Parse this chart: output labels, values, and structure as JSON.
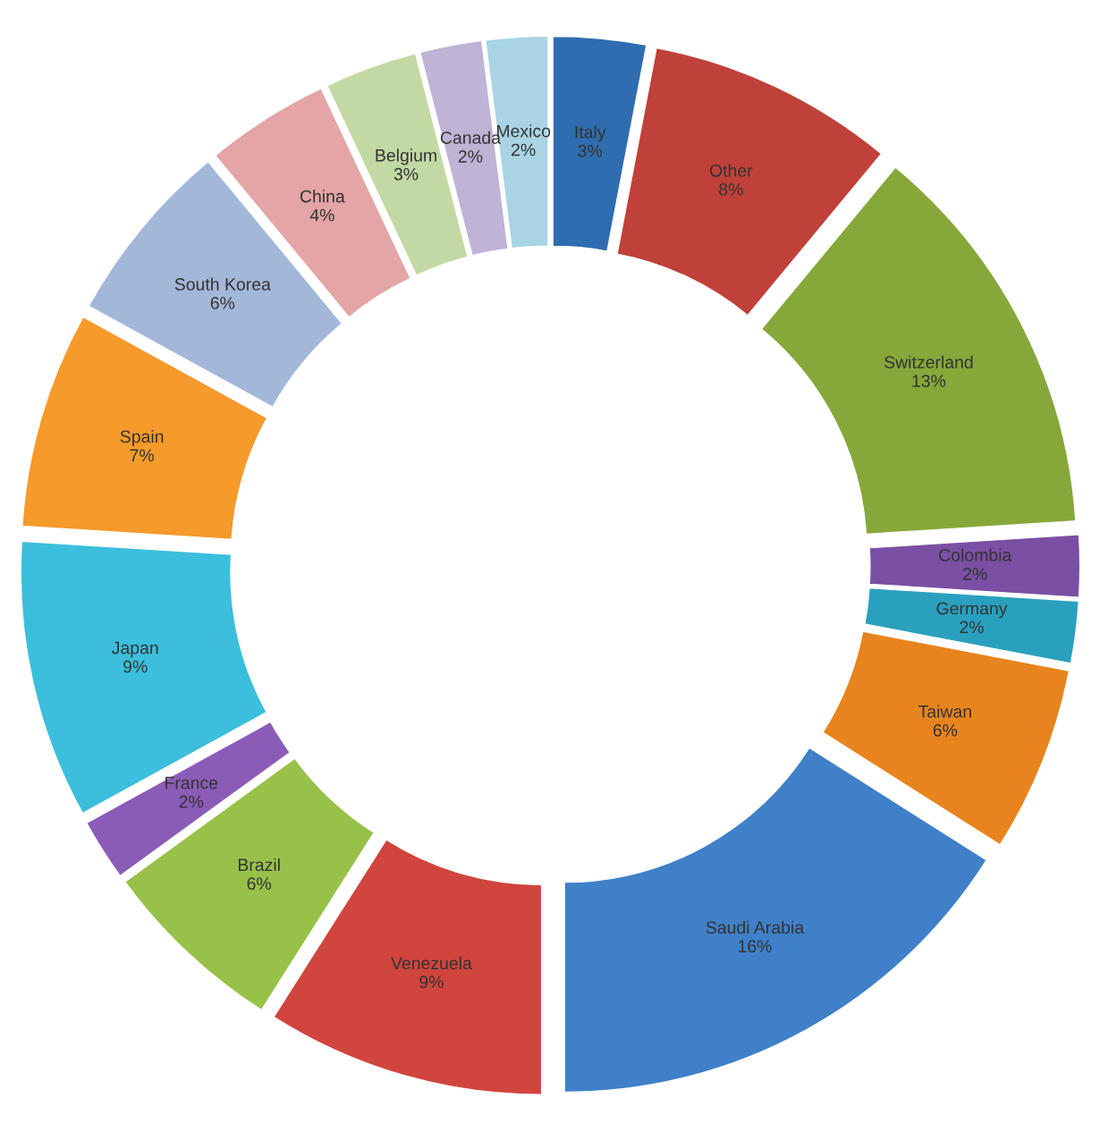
{
  "chart_data": {
    "type": "donut",
    "categories": [
      "Italy",
      "Other",
      "Switzerland",
      "Colombia",
      "Germany",
      "Taiwan",
      "Saudi Arabia",
      "Venezuela",
      "Brazil",
      "France",
      "Japan",
      "Spain",
      "South Korea",
      "China",
      "Belgium",
      "Canada",
      "Mexico"
    ],
    "values": [
      3,
      8,
      13,
      2,
      2,
      6,
      16,
      9,
      6,
      2,
      9,
      7,
      6,
      4,
      3,
      2,
      2
    ],
    "value_labels": [
      "3%",
      "8%",
      "13%",
      "2%",
      "2%",
      "6%",
      "16%",
      "9%",
      "6%",
      "2%",
      "9%",
      "7%",
      "6%",
      "4%",
      "3%",
      "2%",
      "2%"
    ],
    "colors": [
      "#2f6db0",
      "#c0403a",
      "#86a83a",
      "#7b4fa3",
      "#2aa0bf",
      "#e8841e",
      "#3f80c8",
      "#d0453e",
      "#98c14a",
      "#8a5cb8",
      "#3bbfdc",
      "#f59a2b",
      "#a3b7d9",
      "#e3a5a5",
      "#c3d9a3",
      "#bfb3d6",
      "#a8d4e3"
    ]
  }
}
